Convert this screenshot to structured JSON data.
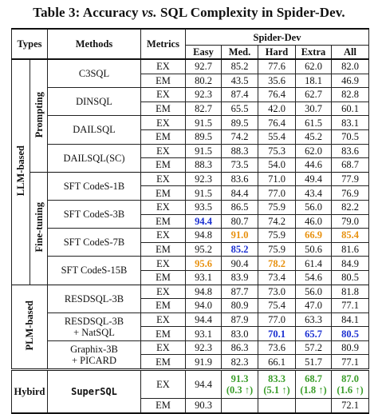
{
  "caption": {
    "prefix": "Table 3: Accuracy ",
    "vs": "vs.",
    "suffix": " SQL Complexity in Spider-Dev."
  },
  "header": {
    "types": "Types",
    "methods": "Methods",
    "metrics": "Metrics",
    "group": "Spider-Dev",
    "cols": [
      "Easy",
      "Med.",
      "Hard",
      "Extra",
      "All"
    ]
  },
  "groups": {
    "llm": "LLM-based",
    "prompting": "Prompting",
    "finetuning": "Fine-tuning",
    "plm": "PLM-based",
    "hybird": "Hybird"
  },
  "rows": [
    {
      "method": "C3SQL",
      "ex": [
        "92.7",
        "85.2",
        "77.6",
        "62.0",
        "82.0"
      ],
      "em": [
        "80.2",
        "43.5",
        "35.6",
        "18.1",
        "46.9"
      ]
    },
    {
      "method": "DINSQL",
      "ex": [
        "92.3",
        "87.4",
        "76.4",
        "62.7",
        "82.8"
      ],
      "em": [
        "82.7",
        "65.5",
        "42.0",
        "30.7",
        "60.1"
      ]
    },
    {
      "method": "DAILSQL",
      "ex": [
        "91.5",
        "89.5",
        "76.4",
        "61.5",
        "83.1"
      ],
      "em": [
        "89.5",
        "74.2",
        "55.4",
        "45.2",
        "70.5"
      ]
    },
    {
      "method": "DAILSQL(SC)",
      "ex": [
        "91.5",
        "88.3",
        "75.3",
        "62.0",
        "83.6"
      ],
      "em": [
        "88.3",
        "73.5",
        "54.0",
        "44.6",
        "68.7"
      ]
    },
    {
      "method": "SFT CodeS-1B",
      "ex": [
        "92.3",
        "83.6",
        "71.0",
        "49.4",
        "77.9"
      ],
      "em": [
        "91.5",
        "84.4",
        "77.0",
        "43.4",
        "76.9"
      ]
    },
    {
      "method": "SFT CodeS-3B",
      "ex": [
        "93.5",
        "86.5",
        "75.9",
        "56.0",
        "82.2"
      ],
      "em": [
        "94.4",
        "80.7",
        "74.2",
        "46.0",
        "79.0"
      ]
    },
    {
      "method": "SFT CodeS-7B",
      "ex": [
        "94.8",
        "91.0",
        "75.9",
        "66.9",
        "85.4"
      ],
      "em": [
        "95.2",
        "85.2",
        "75.9",
        "50.6",
        "81.6"
      ]
    },
    {
      "method": "SFT CodeS-15B",
      "ex": [
        "95.6",
        "90.4",
        "78.2",
        "61.4",
        "84.9"
      ],
      "em": [
        "93.1",
        "83.9",
        "73.4",
        "54.6",
        "80.5"
      ]
    },
    {
      "method": "RESDSQL-3B",
      "ex": [
        "94.8",
        "87.7",
        "73.0",
        "56.0",
        "81.8"
      ],
      "em": [
        "94.0",
        "80.9",
        "75.4",
        "47.0",
        "77.1"
      ]
    },
    {
      "method1": "RESDSQL-3B",
      "method2": "+ NatSQL",
      "ex": [
        "94.4",
        "87.9",
        "77.0",
        "63.3",
        "84.1"
      ],
      "em": [
        "93.1",
        "83.0",
        "70.1",
        "65.7",
        "80.5"
      ]
    },
    {
      "method1": "Graphix-3B",
      "method2": "+ PICARD",
      "ex": [
        "92.3",
        "86.3",
        "73.6",
        "57.2",
        "80.9"
      ],
      "em": [
        "91.9",
        "82.3",
        "66.1",
        "51.7",
        "77.1"
      ]
    }
  ],
  "hybird": {
    "method": "SuperSQL",
    "ex_easy": "94.4",
    "ex_med": "91.3",
    "ex_med_gain": "(0.3 ↑)",
    "ex_hard": "83.3",
    "ex_hard_gain": "(5.1 ↑)",
    "ex_extra": "68.7",
    "ex_extra_gain": "(1.8 ↑)",
    "ex_all": "87.0",
    "ex_all_gain": "(1.6 ↑)",
    "em": [
      "90.3",
      "",
      "",
      "",
      "72.1"
    ]
  },
  "metrics": {
    "ex": "EX",
    "em": "EM"
  },
  "colors": {
    "best": "#1a2fd1",
    "second": "#e8910f",
    "gain": "#3a9d2a"
  }
}
